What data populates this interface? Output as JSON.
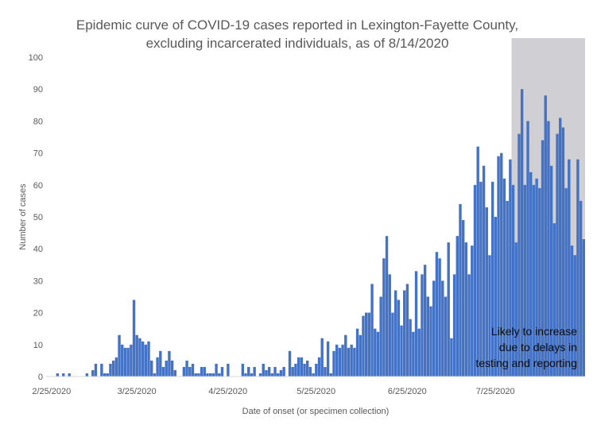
{
  "chart_data": {
    "type": "bar",
    "title": "Epidemic curve of COVID-19 cases reported in Lexington-Fayette County,",
    "subtitle": "excluding incarcerated individuals, as of 8/14/2020",
    "xlabel": "Date of onset (or specimen collection)",
    "ylabel": "Number of cases",
    "ylim": [
      0,
      100
    ],
    "yticks": [
      0,
      10,
      20,
      30,
      40,
      50,
      60,
      70,
      80,
      90,
      100
    ],
    "x_tick_labels": [
      "2/25/2020",
      "3/25/2020",
      "4/25/2020",
      "5/25/2020",
      "6/25/2020",
      "7/25/2020"
    ],
    "start_date": "2/25/2020",
    "end_date": "8/14/2020",
    "grid": false,
    "bar_color": "#4472c4",
    "series": [
      {
        "values": [
          0,
          0,
          1,
          0,
          1,
          0,
          1,
          0,
          0,
          0,
          0,
          0,
          1,
          0,
          2,
          4,
          0,
          4,
          1,
          1,
          4,
          5,
          6,
          13,
          10,
          9,
          9,
          10,
          24,
          13,
          12,
          11,
          10,
          11,
          5,
          1,
          6,
          8,
          3,
          5,
          8,
          5,
          2,
          0,
          0,
          3,
          5,
          3,
          4,
          1,
          1,
          3,
          3,
          1,
          1,
          1,
          4,
          1,
          3,
          0,
          4,
          0,
          0,
          0,
          0,
          4,
          1,
          3,
          1,
          3,
          0,
          1,
          4,
          2,
          3,
          1,
          3,
          1,
          2,
          3,
          0,
          8,
          3,
          4,
          6,
          6,
          4,
          5,
          3,
          1,
          4,
          6,
          12,
          3,
          11,
          1,
          8,
          10,
          9,
          10,
          13,
          9,
          10,
          9,
          15,
          13,
          19,
          20,
          20,
          29,
          15,
          14,
          25,
          37,
          44,
          32,
          20,
          27,
          24,
          16,
          27,
          29,
          18,
          14,
          33,
          15,
          32,
          35,
          25,
          22,
          30,
          39,
          37,
          30,
          25,
          42,
          12,
          32,
          44,
          54,
          49,
          42,
          32,
          41,
          60,
          72,
          61,
          66,
          53,
          38,
          61,
          50,
          69,
          70,
          62,
          55,
          68,
          60,
          42,
          76,
          90,
          60,
          80,
          64,
          60,
          62,
          59,
          74,
          88,
          80,
          66,
          48,
          76,
          81,
          78,
          59,
          68,
          41,
          38,
          68,
          55,
          43
        ]
      }
    ],
    "shaded_region_start_date": "7/31/2020",
    "shaded_region_color": "#d0d0d4",
    "annotation": [
      "Likely to increase",
      "due to delays in",
      "testing and reporting"
    ]
  }
}
